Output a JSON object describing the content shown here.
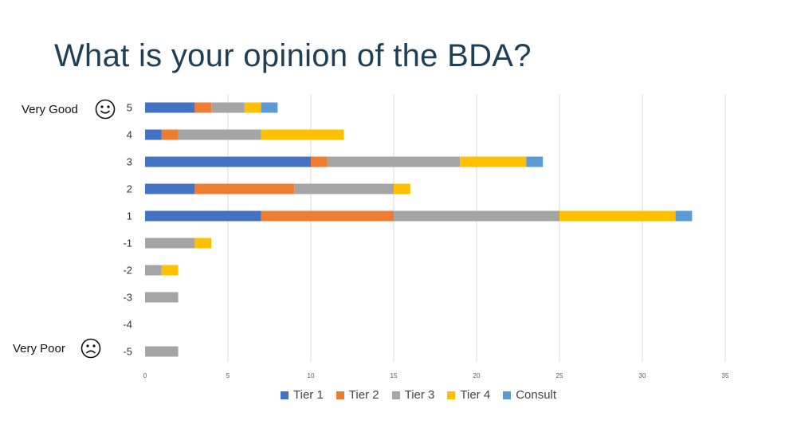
{
  "title": "What is your opinion of the BDA?",
  "annotations": {
    "top": {
      "label": "Very Good",
      "icon": "smiley-face-icon"
    },
    "bottom": {
      "label": "Very Poor",
      "icon": "sad-face-icon"
    }
  },
  "chart_data": {
    "type": "bar",
    "orientation": "horizontal",
    "stacked": true,
    "categories": [
      "5",
      "4",
      "3",
      "2",
      "1",
      "-1",
      "-2",
      "-3",
      "-4",
      "-5"
    ],
    "series": [
      {
        "name": "Tier 1",
        "color": "#4472c4",
        "values": [
          3,
          1,
          10,
          3,
          7,
          0,
          0,
          0,
          0,
          0
        ]
      },
      {
        "name": "Tier 2",
        "color": "#ed7d31",
        "values": [
          1,
          1,
          1,
          6,
          8,
          0,
          0,
          0,
          0,
          0
        ]
      },
      {
        "name": "Tier 3",
        "color": "#a5a5a5",
        "values": [
          2,
          5,
          8,
          6,
          10,
          3,
          1,
          2,
          0,
          2
        ]
      },
      {
        "name": "Tier 4",
        "color": "#ffc000",
        "values": [
          1,
          5,
          4,
          1,
          7,
          1,
          1,
          0,
          0,
          0
        ]
      },
      {
        "name": "Consult",
        "color": "#5b9bd5",
        "values": [
          1,
          0,
          1,
          0,
          1,
          0,
          0,
          0,
          0,
          0
        ]
      }
    ],
    "xlim": [
      0,
      35
    ],
    "xticks": [
      0,
      5,
      10,
      15,
      20,
      25,
      30,
      35
    ],
    "grid": true,
    "legend": "bottom"
  }
}
